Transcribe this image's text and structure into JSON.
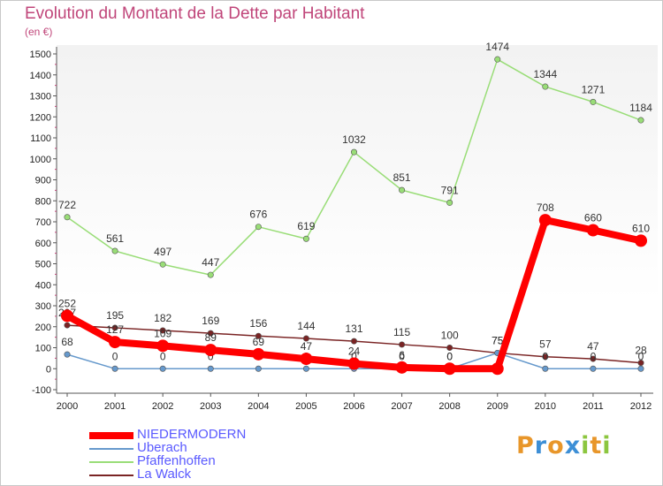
{
  "title": "Evolution du Montant de la Dette par Habitant",
  "subtitle": "(en €)",
  "logo": {
    "letters": [
      "P",
      "r",
      "o",
      "x",
      "i",
      "t",
      "i"
    ],
    "colors": [
      "#e8962a",
      "#3d8fd6",
      "#e8962a",
      "#3d8fd6",
      "#8cc63f",
      "#e8962a",
      "#8cc63f"
    ]
  },
  "chart_data": {
    "type": "line",
    "x": [
      "2000",
      "2001",
      "2002",
      "2003",
      "2004",
      "2005",
      "2006",
      "2007",
      "2008",
      "2009",
      "2010",
      "2011",
      "2012"
    ],
    "ylim": [
      -100,
      1500
    ],
    "yticks": [
      -100,
      0,
      100,
      200,
      300,
      400,
      500,
      600,
      700,
      800,
      900,
      1000,
      1100,
      1200,
      1300,
      1400,
      1500
    ],
    "grid": false,
    "legend_position": "bottom-left",
    "series": [
      {
        "name": "Pfaffenhoffen",
        "color": "#99dd77",
        "values": [
          722,
          561,
          497,
          447,
          676,
          619,
          1032,
          851,
          791,
          1474,
          1344,
          1271,
          1184
        ],
        "labels": [
          "722",
          "561",
          "497",
          "447",
          "676",
          "619",
          "1032",
          "851",
          "791",
          "1474",
          "1344",
          "1271",
          "1184"
        ]
      },
      {
        "name": "La Walck",
        "color": "#7a2424",
        "values": [
          207,
          195,
          182,
          169,
          156,
          144,
          131,
          115,
          100,
          75,
          57,
          47,
          28
        ],
        "labels": [
          "207",
          "195",
          "182",
          "169",
          "156",
          "144",
          "131",
          "115",
          "100",
          "75",
          "57",
          "47",
          "28"
        ]
      },
      {
        "name": "Uberach",
        "color": "#6699cc",
        "values": [
          68,
          0,
          0,
          0,
          0,
          0,
          0,
          0,
          0,
          75,
          0,
          0,
          0
        ],
        "labels": [
          "68",
          "0",
          "0",
          "0",
          "0",
          "0",
          "0",
          "0",
          "0",
          "75",
          "0",
          "0",
          "0"
        ]
      },
      {
        "name": "NIEDERMODERN",
        "color": "#ff0000",
        "values": [
          252,
          127,
          109,
          89,
          69,
          47,
          24,
          6,
          0,
          0,
          708,
          660,
          610
        ],
        "labels": [
          "252",
          "127",
          "109",
          "89",
          "69",
          "47",
          "24",
          "6",
          "0",
          "",
          "708",
          "660",
          "610"
        ]
      }
    ],
    "legend_order": [
      "NIEDERMODERN",
      "Uberach",
      "Pfaffenhoffen",
      "La Walck"
    ]
  }
}
